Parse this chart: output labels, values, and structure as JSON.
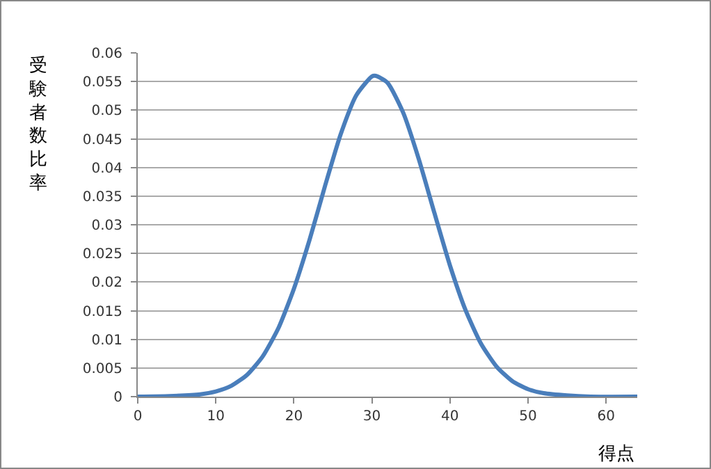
{
  "chart_data": {
    "type": "line",
    "xlabel": "得点",
    "ylabel": "受験者数比率",
    "x": [
      0,
      4,
      8,
      10,
      12,
      14,
      16,
      18,
      20,
      22,
      24,
      26,
      28,
      30,
      30.5,
      32,
      34,
      36,
      38,
      40,
      42,
      44,
      46,
      48,
      50,
      52,
      55,
      58,
      64
    ],
    "series": [
      {
        "color": "#4a7ebb",
        "values": [
          0,
          0.0001,
          0.0004,
          0.0009,
          0.0019,
          0.0038,
          0.007,
          0.0119,
          0.0188,
          0.0273,
          0.0368,
          0.0458,
          0.0526,
          0.0559,
          0.056,
          0.0548,
          0.0496,
          0.0415,
          0.0321,
          0.0229,
          0.0151,
          0.0092,
          0.0052,
          0.0027,
          0.0013,
          0.0006,
          0.0002,
          0,
          0
        ]
      }
    ],
    "xlim": [
      0,
      64
    ],
    "xticks": [
      0,
      10,
      20,
      30,
      40,
      50,
      60
    ],
    "ylim": [
      0,
      0.06
    ],
    "yticks": [
      0,
      0.005,
      0.01,
      0.015,
      0.02,
      0.025,
      0.03,
      0.035,
      0.04,
      0.045,
      0.05,
      0.055,
      0.06
    ],
    "grid": "y",
    "marker": "none",
    "line_style": "solid"
  }
}
